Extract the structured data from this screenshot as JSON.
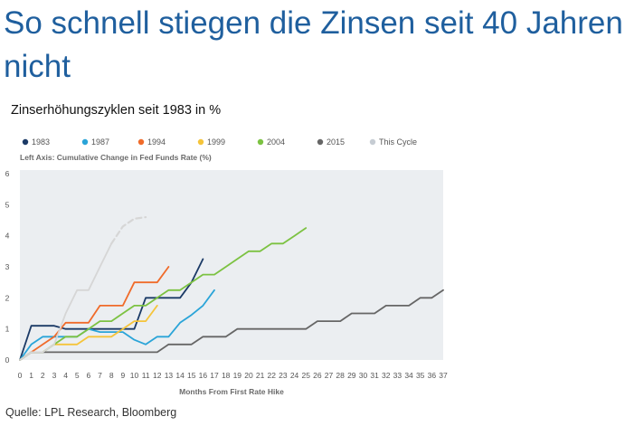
{
  "headline": "So schnell stiegen die Zinsen seit 40 Jahren nicht",
  "subtitle": "Zinserhöhungszyklen seit 1983 in %",
  "source": "Quelle: LPL Research, Bloomberg",
  "chart_data": {
    "type": "line",
    "left_axis_title": "Left Axis: Cumulative Change in Fed Funds Rate (%)",
    "xlabel": "Months From First Rate Hike",
    "xlim": [
      0,
      37
    ],
    "ylim": [
      0,
      6
    ],
    "x_ticks": [
      0,
      1,
      2,
      3,
      4,
      5,
      6,
      7,
      8,
      9,
      10,
      11,
      12,
      13,
      14,
      15,
      16,
      17,
      18,
      19,
      20,
      21,
      22,
      23,
      24,
      25,
      26,
      27,
      28,
      29,
      30,
      31,
      32,
      33,
      34,
      35,
      36,
      37
    ],
    "y_ticks": [
      0,
      1,
      2,
      3,
      4,
      5,
      6
    ],
    "grid": false,
    "legend_position": "top",
    "series": [
      {
        "name": "1983",
        "color": "#1b3a66",
        "dashed": false,
        "x": [
          0,
          1,
          2,
          3,
          4,
          5,
          6,
          7,
          8,
          9,
          10,
          11,
          12,
          13,
          14,
          15,
          16
        ],
        "y": [
          0,
          1.1,
          1.1,
          1.1,
          1.0,
          1.0,
          1.0,
          1.0,
          1.0,
          1.0,
          1.0,
          2.0,
          2.0,
          2.0,
          2.0,
          2.5,
          3.25
        ]
      },
      {
        "name": "1987",
        "color": "#2aa4d8",
        "dashed": false,
        "x": [
          0,
          1,
          2,
          3,
          4,
          5,
          6,
          7,
          8,
          9,
          10,
          11,
          12,
          13,
          14,
          15,
          16,
          17
        ],
        "y": [
          0,
          0.5,
          0.75,
          0.75,
          0.75,
          0.75,
          1.0,
          0.9,
          0.9,
          0.9,
          0.65,
          0.5,
          0.75,
          0.75,
          1.2,
          1.45,
          1.75,
          2.25
        ]
      },
      {
        "name": "1994",
        "color": "#f06b2a",
        "dashed": false,
        "x": [
          0,
          1,
          2,
          3,
          4,
          5,
          6,
          7,
          8,
          9,
          10,
          11,
          12,
          13
        ],
        "y": [
          0,
          0.25,
          0.5,
          0.75,
          1.2,
          1.2,
          1.2,
          1.75,
          1.75,
          1.75,
          2.5,
          2.5,
          2.5,
          3.0
        ]
      },
      {
        "name": "1999",
        "color": "#f5c43a",
        "dashed": false,
        "x": [
          0,
          1,
          2,
          3,
          4,
          5,
          6,
          7,
          8,
          9,
          10,
          11,
          12
        ],
        "y": [
          0,
          0.25,
          0.25,
          0.5,
          0.5,
          0.5,
          0.75,
          0.75,
          0.75,
          1.0,
          1.25,
          1.25,
          1.75
        ]
      },
      {
        "name": "2004",
        "color": "#7cc242",
        "dashed": false,
        "x": [
          0,
          1,
          2,
          3,
          4,
          5,
          6,
          7,
          8,
          9,
          10,
          11,
          12,
          13,
          14,
          15,
          16,
          17,
          18,
          19,
          20,
          21,
          22,
          23,
          24,
          25
        ],
        "y": [
          0,
          0.25,
          0.25,
          0.5,
          0.75,
          0.75,
          1.0,
          1.25,
          1.25,
          1.5,
          1.75,
          1.75,
          2.0,
          2.25,
          2.25,
          2.5,
          2.75,
          2.75,
          3.0,
          3.25,
          3.5,
          3.5,
          3.75,
          3.75,
          4.0,
          4.25
        ]
      },
      {
        "name": "2015",
        "color": "#666666",
        "dashed": false,
        "x": [
          0,
          1,
          2,
          3,
          4,
          5,
          6,
          7,
          8,
          9,
          10,
          11,
          12,
          13,
          14,
          15,
          16,
          17,
          18,
          19,
          20,
          21,
          22,
          23,
          24,
          25,
          26,
          27,
          28,
          29,
          30,
          31,
          32,
          33,
          34,
          35,
          36,
          37
        ],
        "y": [
          0,
          0.25,
          0.25,
          0.25,
          0.25,
          0.25,
          0.25,
          0.25,
          0.25,
          0.25,
          0.25,
          0.25,
          0.25,
          0.5,
          0.5,
          0.5,
          0.75,
          0.75,
          0.75,
          1.0,
          1.0,
          1.0,
          1.0,
          1.0,
          1.0,
          1.0,
          1.25,
          1.25,
          1.25,
          1.5,
          1.5,
          1.5,
          1.75,
          1.75,
          1.75,
          2.0,
          2.0,
          2.25
        ]
      },
      {
        "name": "This Cycle",
        "color": "#d6d6d6",
        "dashed": false,
        "x": [
          0,
          1,
          2,
          3,
          4,
          5,
          6,
          7,
          8
        ],
        "y": [
          0,
          0.25,
          0.25,
          0.5,
          1.5,
          2.25,
          2.25,
          3.0,
          3.75
        ]
      },
      {
        "name": "This Cycle (projected)",
        "color": "#d6d6d6",
        "dashed": true,
        "x": [
          8,
          9,
          10,
          11
        ],
        "y": [
          3.75,
          4.3,
          4.55,
          4.6
        ]
      }
    ]
  }
}
